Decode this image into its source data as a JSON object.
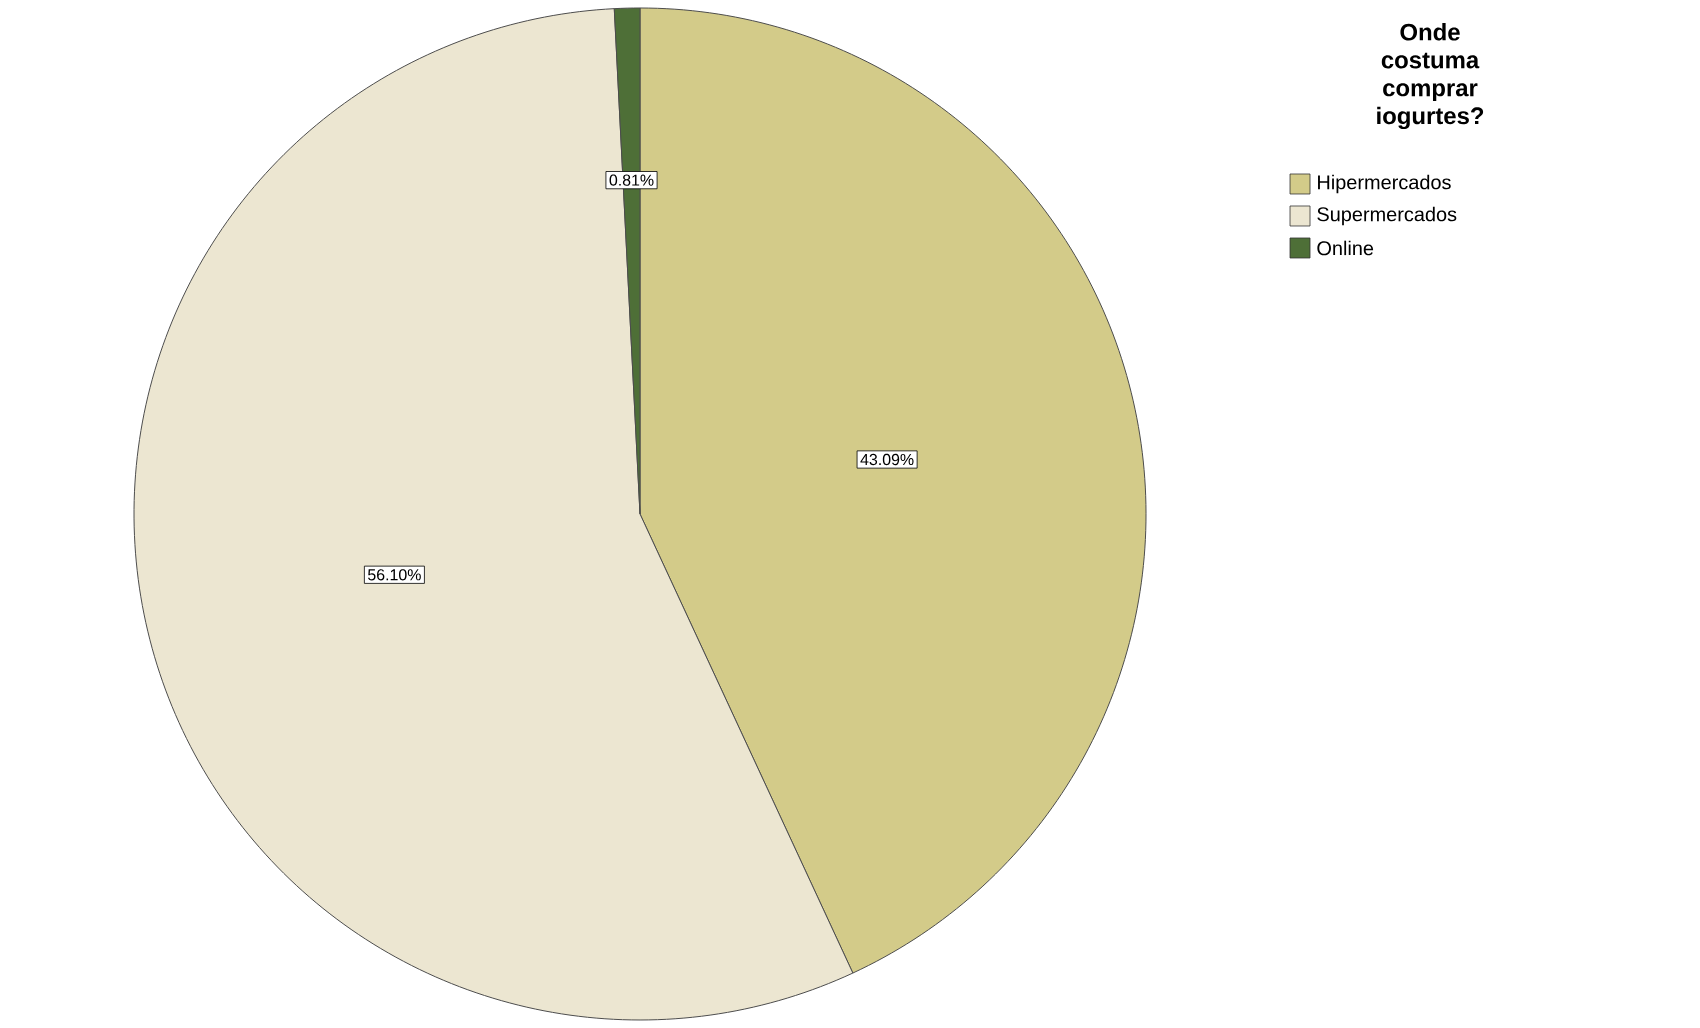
{
  "chart_data": {
    "type": "pie",
    "legend_title": "Onde costuma comprar iogurtes?",
    "categories": [
      "Hipermercados",
      "Supermercados",
      "Online"
    ],
    "values": [
      43.09,
      56.1,
      0.81
    ],
    "colors": [
      "#d3cb89",
      "#ece6d1",
      "#4e6f37"
    ],
    "value_labels": [
      "43.09%",
      "56.10%",
      "0.81%"
    ],
    "legend": "top right"
  }
}
